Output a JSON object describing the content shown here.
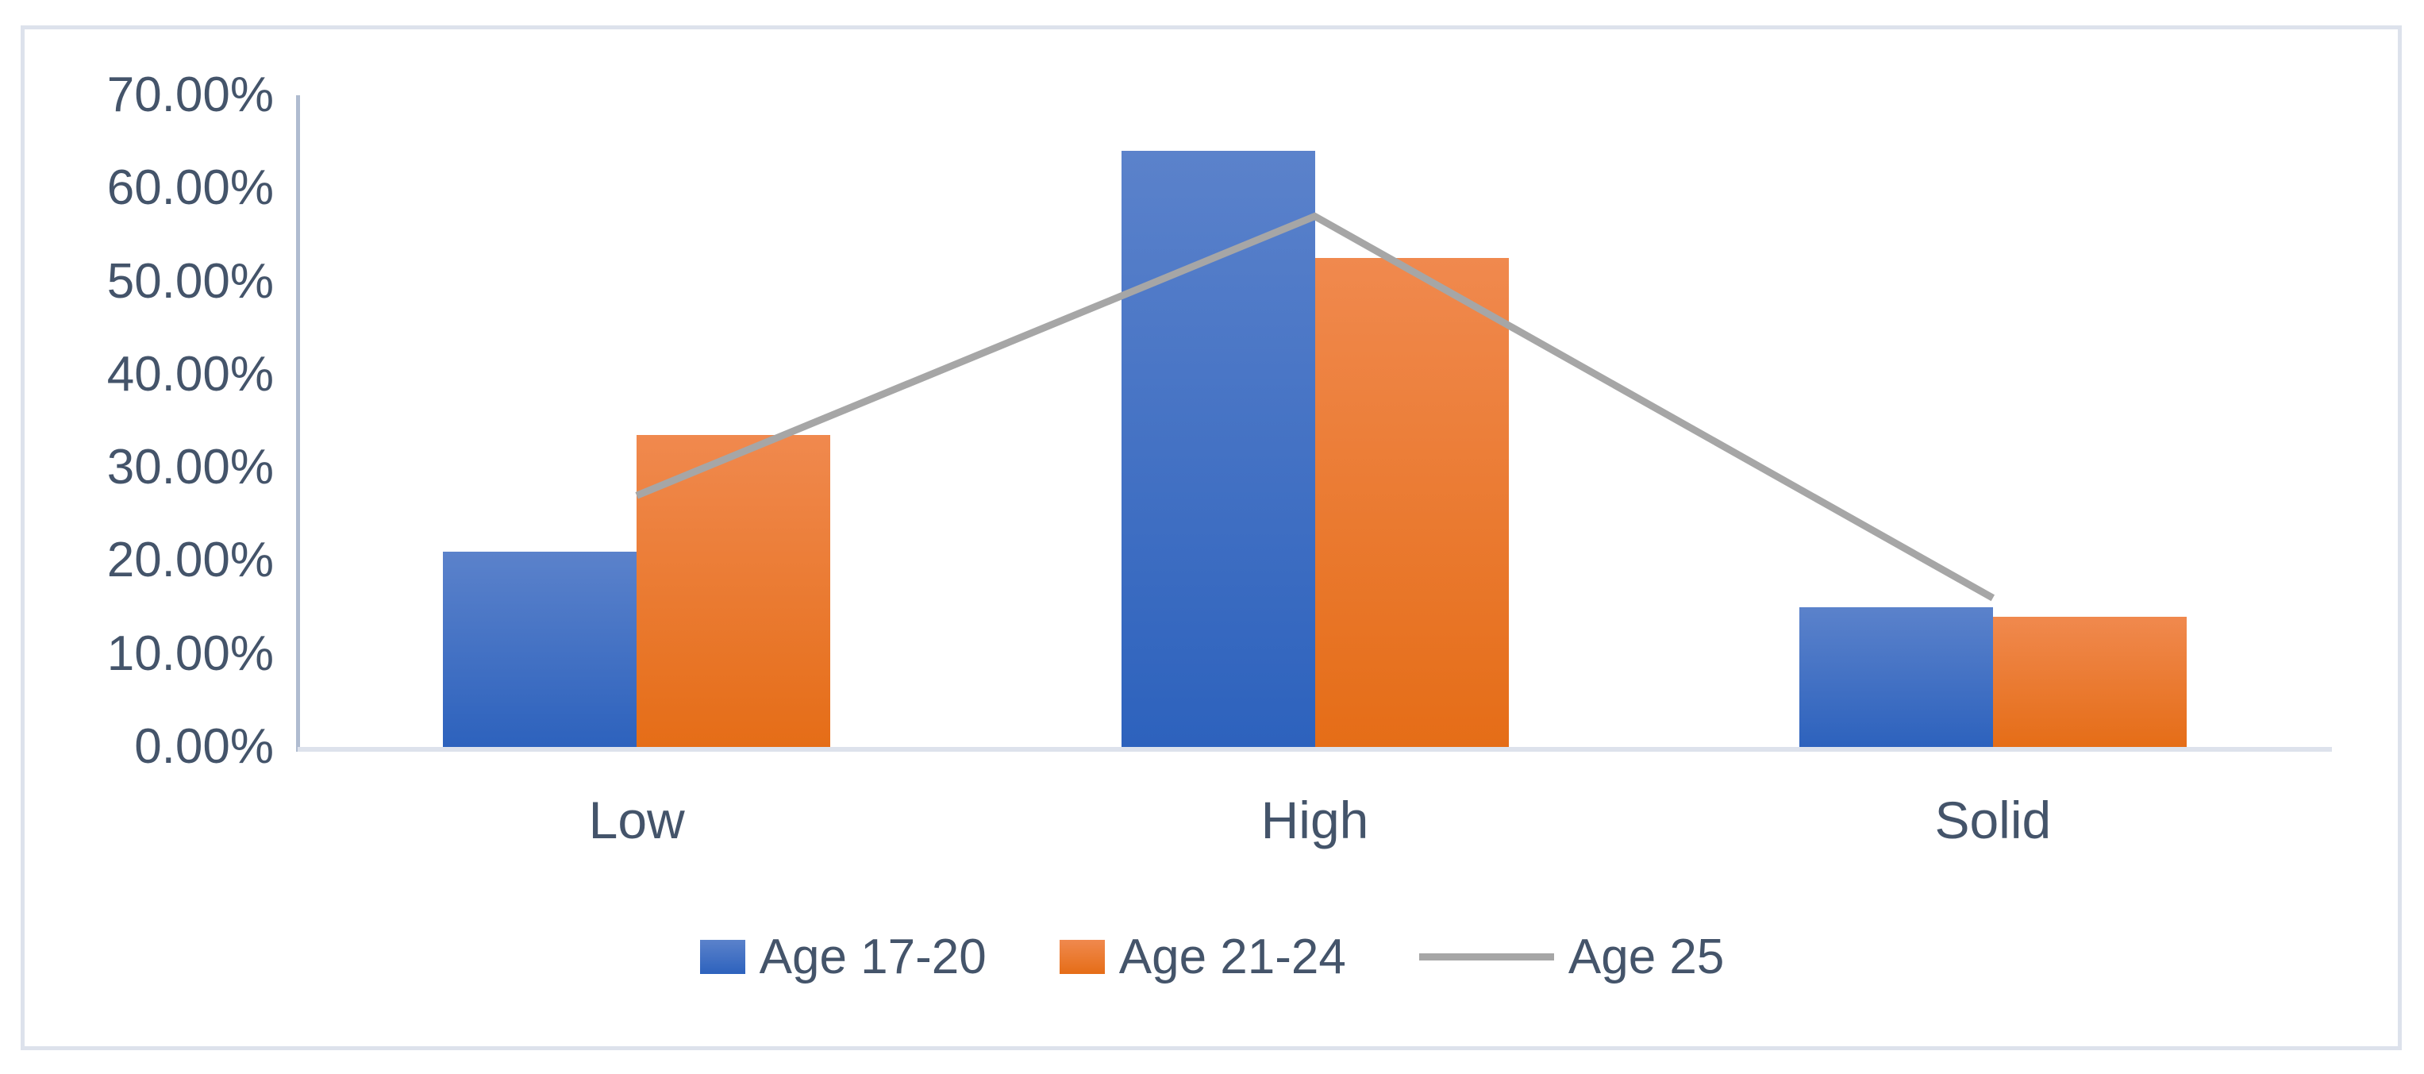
{
  "chart_data": {
    "type": "bar",
    "subtype": "clustered bars with overlaid line series",
    "title": "",
    "xlabel": "",
    "ylabel": "",
    "categories": [
      "Low",
      "High",
      "Solid"
    ],
    "series": [
      {
        "name": "Age 17-20",
        "type": "bar",
        "values": [
          21,
          64,
          15
        ],
        "color_top": "#5b82cb",
        "color_bottom": "#2d62bd"
      },
      {
        "name": "Age 21-24",
        "type": "bar",
        "values": [
          33.5,
          52.5,
          14
        ],
        "color_top": "#f0894e",
        "color_bottom": "#e56d17"
      },
      {
        "name": "Age 25",
        "type": "line",
        "values": [
          27,
          57,
          16
        ],
        "color": "#a6a6a6"
      }
    ],
    "ylim": [
      0,
      70
    ],
    "ytick_step": 10,
    "ytick_labels": [
      "0.00%",
      "10.00%",
      "20.00%",
      "30.00%",
      "40.00%",
      "50.00%",
      "60.00%",
      "70.00%"
    ],
    "grid": false,
    "legend_position": "bottom",
    "plot_background": "#ffffff",
    "axis_text_color": "#44546a",
    "y_axis_line_color": "#b0bcd0",
    "x_axis_line_color": "#dde2ec",
    "frame_border_color": "#dde2ec"
  }
}
